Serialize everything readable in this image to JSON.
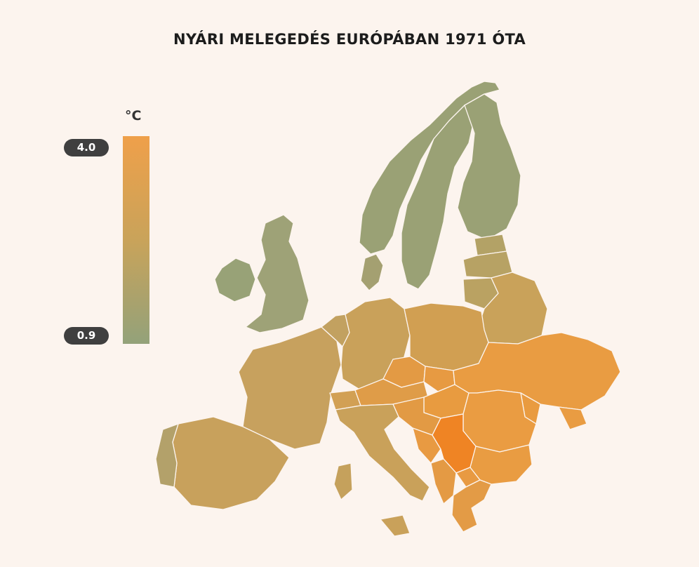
{
  "title": "NYÁRI MELEGEDÉS EURÓPÁBAN 1971 ÓTA",
  "legend": {
    "unit": "°C",
    "max_label": "4.0",
    "min_label": "0.9",
    "min_value": 0.9,
    "max_value": 4.0,
    "color_low": "#93a27a",
    "color_mid": "#c9a35a",
    "color_high": "#efa04a",
    "color_peak": "#ef8424"
  }
}
